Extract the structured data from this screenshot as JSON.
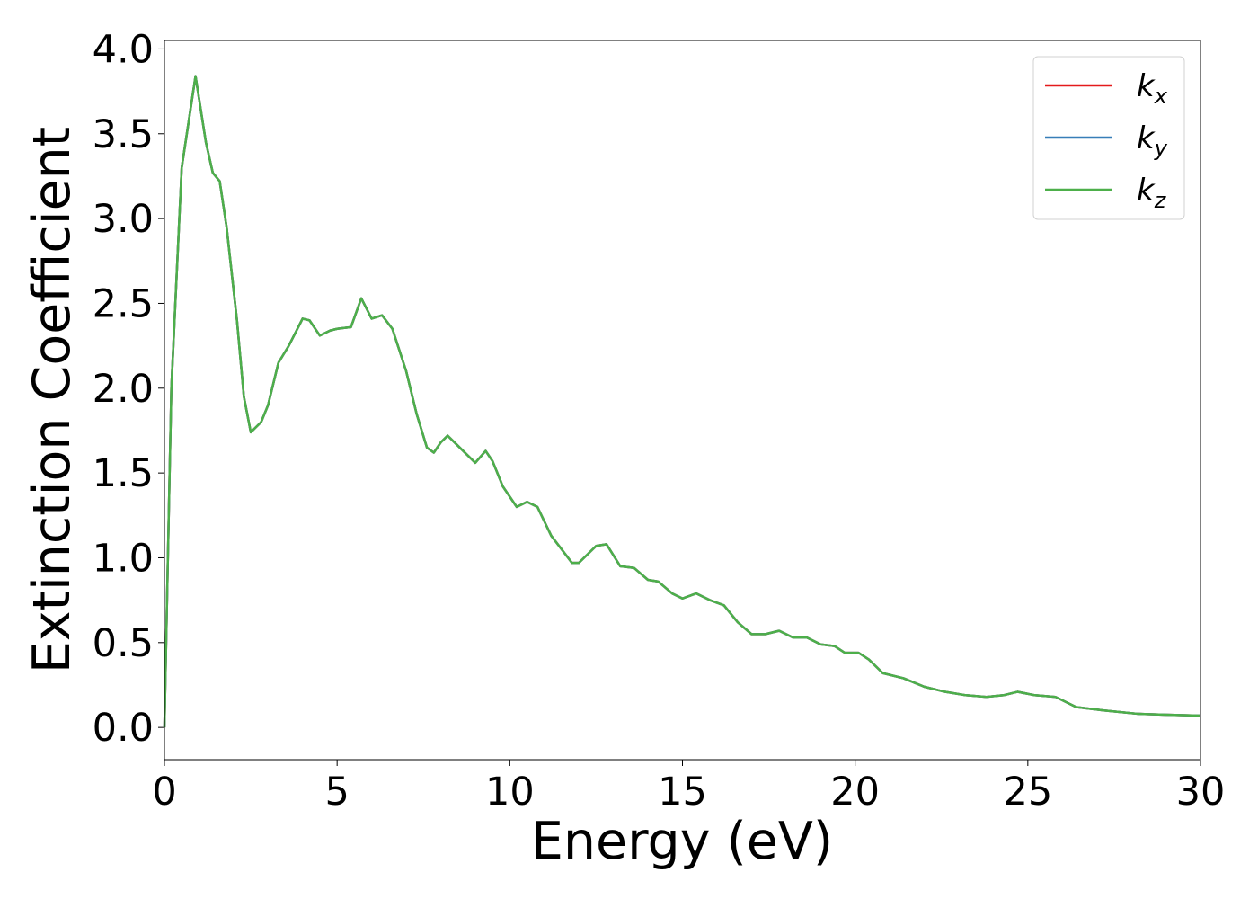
{
  "chart_data": {
    "type": "line",
    "xlabel": "Energy (eV)",
    "ylabel": "Extinction Coefficient",
    "xlim": [
      0,
      30
    ],
    "ylim": [
      -0.19,
      4.05
    ],
    "xticks": [
      0,
      5,
      10,
      15,
      20,
      25,
      30
    ],
    "yticks": [
      {
        "value": 0,
        "label": "0.0"
      },
      0.5,
      {
        "value": 1,
        "label": "1.0"
      },
      1.5,
      {
        "value": 2,
        "label": "2.0"
      },
      2.5,
      {
        "value": 3,
        "label": "3.0"
      },
      3.5,
      {
        "value": 4,
        "label": "4.0"
      }
    ],
    "grid": false,
    "legend": "upper right",
    "x": [
      0,
      0.2,
      0.5,
      0.9,
      1.2,
      1.4,
      1.6,
      1.8,
      2.1,
      2.3,
      2.5,
      2.8,
      3.0,
      3.3,
      3.6,
      4.0,
      4.2,
      4.5,
      4.8,
      5.0,
      5.4,
      5.7,
      6.0,
      6.3,
      6.6,
      7.0,
      7.3,
      7.6,
      7.8,
      8.0,
      8.2,
      8.5,
      9.0,
      9.3,
      9.5,
      9.8,
      10.2,
      10.5,
      10.8,
      11.2,
      11.5,
      11.8,
      12.0,
      12.5,
      12.8,
      13.2,
      13.6,
      14.0,
      14.3,
      14.7,
      15.0,
      15.4,
      15.8,
      16.2,
      16.6,
      17.0,
      17.4,
      17.8,
      18.2,
      18.6,
      19.0,
      19.4,
      19.7,
      20.1,
      20.4,
      20.8,
      21.4,
      22.0,
      22.6,
      23.2,
      23.8,
      24.3,
      24.7,
      25.2,
      25.8,
      26.4,
      27.2,
      28.2,
      29.0,
      30.0
    ],
    "series": [
      {
        "name": "k_x",
        "color": "#e41a1c",
        "values": [
          0.0,
          2.0,
          3.3,
          3.84,
          3.45,
          3.27,
          3.22,
          2.95,
          2.4,
          1.95,
          1.74,
          1.8,
          1.9,
          2.15,
          2.25,
          2.41,
          2.4,
          2.31,
          2.34,
          2.35,
          2.36,
          2.53,
          2.41,
          2.43,
          2.35,
          2.1,
          1.85,
          1.65,
          1.62,
          1.68,
          1.72,
          1.66,
          1.56,
          1.63,
          1.57,
          1.42,
          1.3,
          1.33,
          1.3,
          1.13,
          1.05,
          0.97,
          0.97,
          1.07,
          1.08,
          0.95,
          0.94,
          0.87,
          0.86,
          0.79,
          0.76,
          0.79,
          0.75,
          0.72,
          0.62,
          0.55,
          0.55,
          0.57,
          0.53,
          0.53,
          0.49,
          0.48,
          0.44,
          0.44,
          0.4,
          0.32,
          0.29,
          0.24,
          0.21,
          0.19,
          0.18,
          0.19,
          0.21,
          0.19,
          0.18,
          0.12,
          0.1,
          0.08,
          0.075,
          0.07
        ]
      },
      {
        "name": "k_y",
        "color": "#377eb8",
        "values": [
          0.0,
          2.0,
          3.3,
          3.84,
          3.45,
          3.27,
          3.22,
          2.95,
          2.4,
          1.95,
          1.74,
          1.8,
          1.9,
          2.15,
          2.25,
          2.41,
          2.4,
          2.31,
          2.34,
          2.35,
          2.36,
          2.53,
          2.41,
          2.43,
          2.35,
          2.1,
          1.85,
          1.65,
          1.62,
          1.68,
          1.72,
          1.66,
          1.56,
          1.63,
          1.57,
          1.42,
          1.3,
          1.33,
          1.3,
          1.13,
          1.05,
          0.97,
          0.97,
          1.07,
          1.08,
          0.95,
          0.94,
          0.87,
          0.86,
          0.79,
          0.76,
          0.79,
          0.75,
          0.72,
          0.62,
          0.55,
          0.55,
          0.57,
          0.53,
          0.53,
          0.49,
          0.48,
          0.44,
          0.44,
          0.4,
          0.32,
          0.29,
          0.24,
          0.21,
          0.19,
          0.18,
          0.19,
          0.21,
          0.19,
          0.18,
          0.12,
          0.1,
          0.08,
          0.075,
          0.07
        ]
      },
      {
        "name": "k_z",
        "color": "#4daf4a",
        "values": [
          0.0,
          2.0,
          3.3,
          3.84,
          3.45,
          3.27,
          3.22,
          2.95,
          2.4,
          1.95,
          1.74,
          1.8,
          1.9,
          2.15,
          2.25,
          2.41,
          2.4,
          2.31,
          2.34,
          2.35,
          2.36,
          2.53,
          2.41,
          2.43,
          2.35,
          2.1,
          1.85,
          1.65,
          1.62,
          1.68,
          1.72,
          1.66,
          1.56,
          1.63,
          1.57,
          1.42,
          1.3,
          1.33,
          1.3,
          1.13,
          1.05,
          0.97,
          0.97,
          1.07,
          1.08,
          0.95,
          0.94,
          0.87,
          0.86,
          0.79,
          0.76,
          0.79,
          0.75,
          0.72,
          0.62,
          0.55,
          0.55,
          0.57,
          0.53,
          0.53,
          0.49,
          0.48,
          0.44,
          0.44,
          0.4,
          0.32,
          0.29,
          0.24,
          0.21,
          0.19,
          0.18,
          0.19,
          0.21,
          0.19,
          0.18,
          0.12,
          0.1,
          0.08,
          0.075,
          0.07
        ]
      }
    ]
  }
}
